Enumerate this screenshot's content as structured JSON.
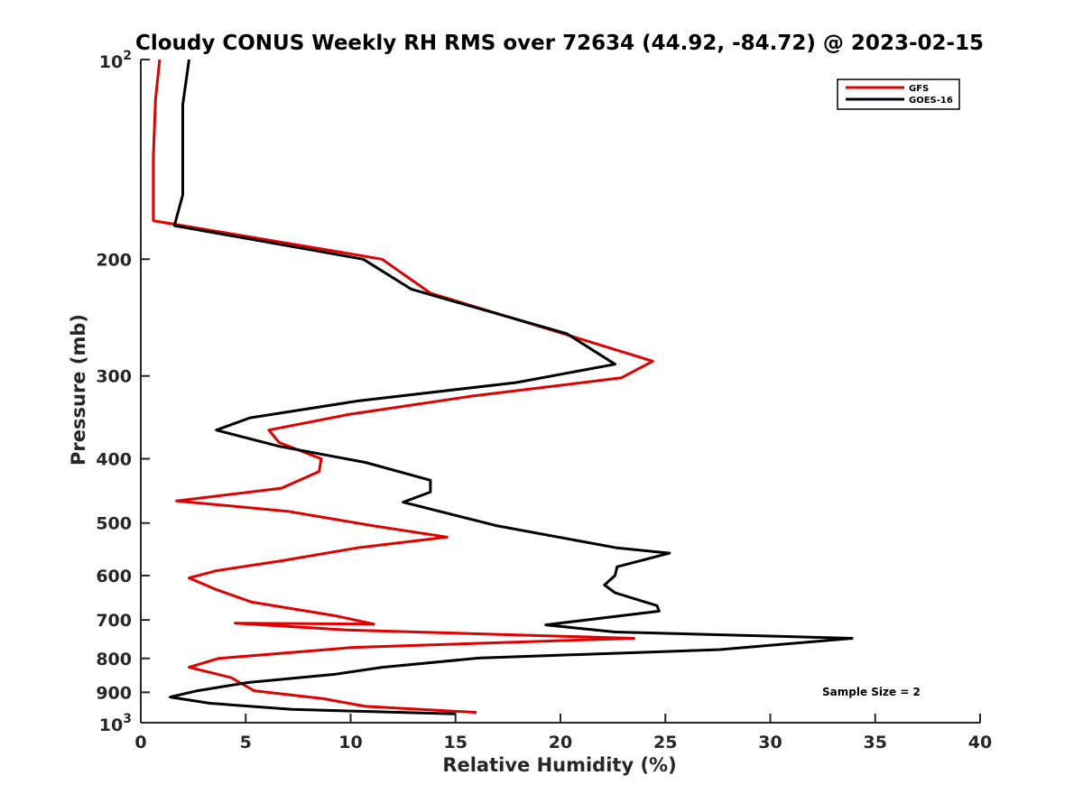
{
  "chart_data": {
    "type": "line",
    "title": "Cloudy CONUS Weekly RH RMS over 72634 (44.92, -84.72) @ 2023-02-15",
    "xlabel": "Relative Humidity (%)",
    "ylabel": "Pressure (mb)",
    "xlim": [
      0,
      40
    ],
    "ylim": [
      100,
      1000
    ],
    "y_scale": "log",
    "y_reversed": true,
    "grid": false,
    "legend_position": "top-right",
    "x_ticks": [
      "0",
      "5",
      "10",
      "15",
      "20",
      "25",
      "30",
      "35",
      "40"
    ],
    "y_ticks": [
      {
        "value": 100,
        "base": "10",
        "exp": "2"
      },
      {
        "value": 200,
        "label": "200"
      },
      {
        "value": 300,
        "label": "300"
      },
      {
        "value": 400,
        "label": "400"
      },
      {
        "value": 500,
        "label": "500"
      },
      {
        "value": 600,
        "label": "600"
      },
      {
        "value": 700,
        "label": "700"
      },
      {
        "value": 800,
        "label": "800"
      },
      {
        "value": 900,
        "label": "900"
      },
      {
        "value": 1000,
        "base": "10",
        "exp": "3"
      }
    ],
    "annotation": "Sample Size = 2",
    "series": [
      {
        "name": "GFS",
        "color": "#e00000",
        "points": [
          [
            0.9,
            100
          ],
          [
            0.7,
            115
          ],
          [
            0.6,
            140
          ],
          [
            0.6,
            175
          ],
          [
            11.5,
            200
          ],
          [
            13.8,
            225
          ],
          [
            20.3,
            260
          ],
          [
            24.4,
            285
          ],
          [
            22.9,
            302
          ],
          [
            15.7,
            322
          ],
          [
            9.9,
            343
          ],
          [
            6.1,
            362
          ],
          [
            6.6,
            378
          ],
          [
            8.6,
            400
          ],
          [
            8.5,
            418
          ],
          [
            6.7,
            443
          ],
          [
            1.7,
            463
          ],
          [
            7.0,
            480
          ],
          [
            11.1,
            505
          ],
          [
            14.6,
            525
          ],
          [
            10.3,
            545
          ],
          [
            6.7,
            570
          ],
          [
            3.6,
            590
          ],
          [
            2.3,
            605
          ],
          [
            3.6,
            630
          ],
          [
            5.3,
            658
          ],
          [
            9.3,
            690
          ],
          [
            11.1,
            710
          ],
          [
            4.5,
            708
          ],
          [
            9.8,
            725
          ],
          [
            23.5,
            746
          ],
          [
            10.1,
            770
          ],
          [
            3.7,
            800
          ],
          [
            2.3,
            825
          ],
          [
            4.3,
            855
          ],
          [
            5.4,
            895
          ],
          [
            8.7,
            920
          ],
          [
            10.7,
            945
          ],
          [
            16.0,
            965
          ]
        ]
      },
      {
        "name": "GOES-16",
        "color": "#000000",
        "points": [
          [
            2.3,
            100
          ],
          [
            2.0,
            117
          ],
          [
            2.0,
            140
          ],
          [
            2.0,
            160
          ],
          [
            1.6,
            178
          ],
          [
            10.6,
            200
          ],
          [
            12.9,
            222
          ],
          [
            20.3,
            259
          ],
          [
            22.6,
            288
          ],
          [
            17.9,
            307
          ],
          [
            10.4,
            327
          ],
          [
            5.2,
            347
          ],
          [
            3.6,
            362
          ],
          [
            6.6,
            383
          ],
          [
            10.7,
            405
          ],
          [
            13.8,
            431
          ],
          [
            13.8,
            449
          ],
          [
            12.5,
            465
          ],
          [
            17.0,
            505
          ],
          [
            22.7,
            545
          ],
          [
            25.2,
            555
          ],
          [
            22.7,
            582
          ],
          [
            22.6,
            600
          ],
          [
            22.1,
            620
          ],
          [
            22.6,
            637
          ],
          [
            24.6,
            666
          ],
          [
            24.7,
            679
          ],
          [
            19.3,
            712
          ],
          [
            22.6,
            730
          ],
          [
            33.9,
            746
          ],
          [
            27.6,
            776
          ],
          [
            16.1,
            799
          ],
          [
            11.5,
            825
          ],
          [
            9.3,
            845
          ],
          [
            5.1,
            870
          ],
          [
            2.7,
            895
          ],
          [
            1.4,
            915
          ],
          [
            3.3,
            935
          ],
          [
            7.2,
            955
          ],
          [
            15.0,
            970
          ]
        ]
      }
    ]
  }
}
